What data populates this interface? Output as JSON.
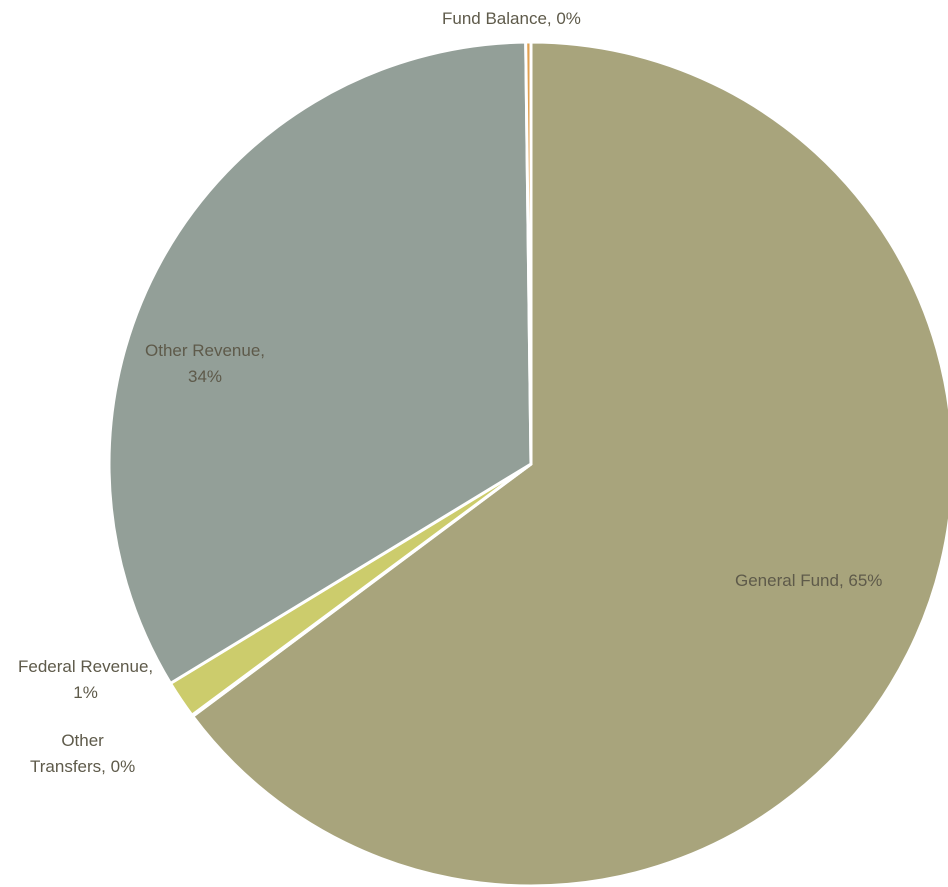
{
  "chart_data": {
    "type": "pie",
    "title": "",
    "start_angle_deg": 0,
    "direction": "clockwise",
    "slices": [
      {
        "name": "General Fund",
        "value": 64.8,
        "label_lines": [
          "General Fund, 65%"
        ],
        "color": "#a8a47c"
      },
      {
        "name": "Other Transfers",
        "value": 0.05,
        "label_lines": [
          "Other",
          "Transfers, 0%"
        ],
        "color": "#8c8464"
      },
      {
        "name": "Federal Revenue",
        "value": 1.45,
        "label_lines": [
          "Federal Revenue,",
          "1%"
        ],
        "color": "#cccc6c"
      },
      {
        "name": "Other Revenue",
        "value": 33.5,
        "label_lines": [
          "Other Revenue,",
          "34%"
        ],
        "color": "#939f98"
      },
      {
        "name": "Fund Balance",
        "value": 0.2,
        "label_lines": [
          "Fund Balance, 0%"
        ],
        "color": "#e0a050"
      }
    ],
    "legend": "none",
    "slice_border_color": "#ffffff"
  }
}
